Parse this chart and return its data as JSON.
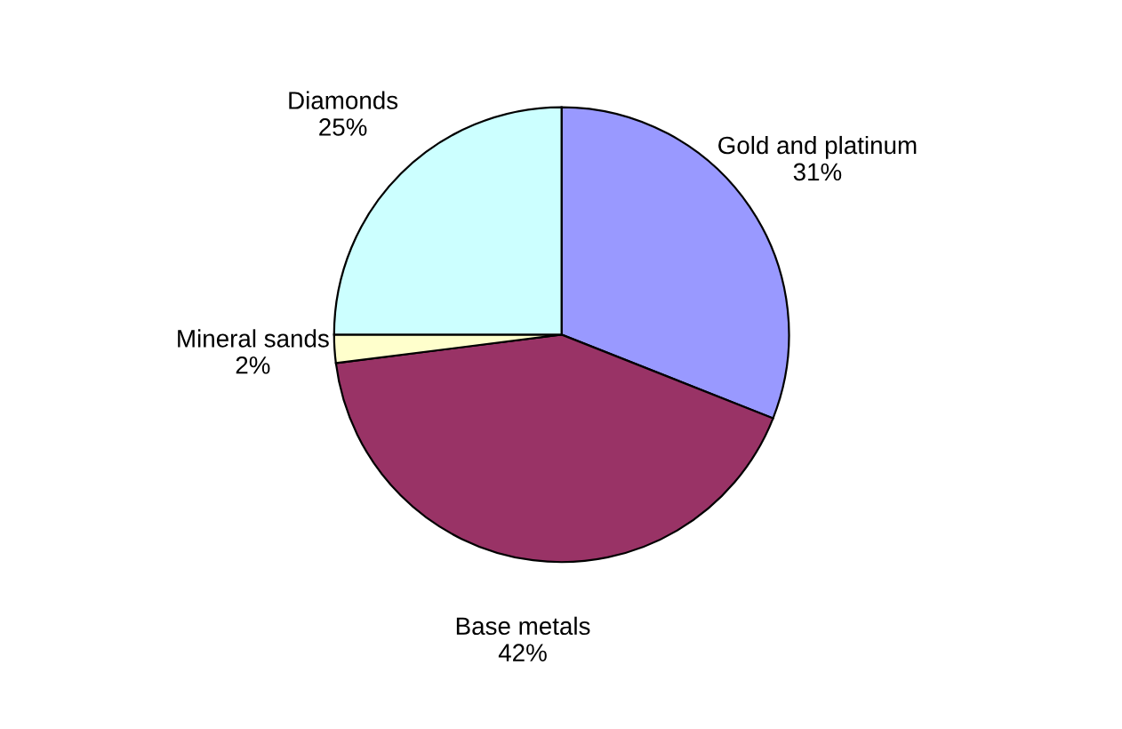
{
  "chart_data": {
    "type": "pie",
    "categories": [
      "Gold and platinum",
      "Base metals",
      "Mineral sands",
      "Diamonds"
    ],
    "values": [
      31,
      42,
      2,
      25
    ],
    "value_labels": [
      "31%",
      "42%",
      "2%",
      "25%"
    ],
    "colors": [
      "#9999ff",
      "#993366",
      "#ffffcc",
      "#ccffff"
    ]
  }
}
